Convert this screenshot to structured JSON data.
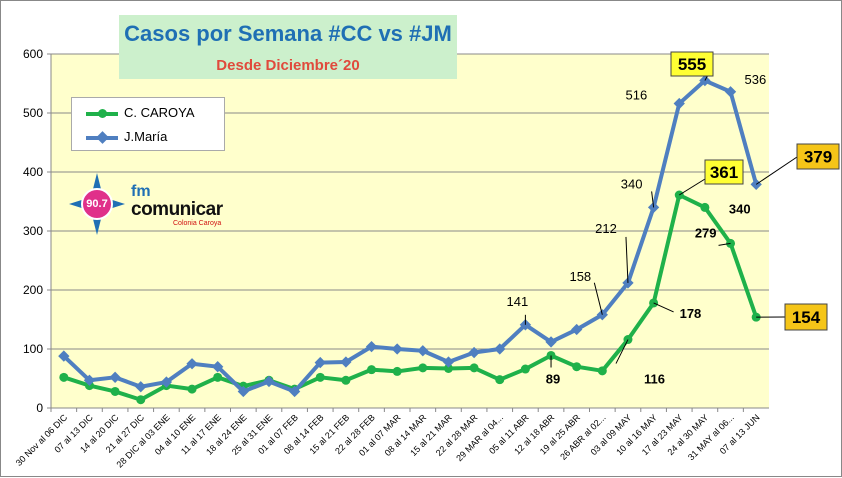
{
  "chart_data": {
    "type": "line",
    "title": "Casos por Semana #CC vs #JM",
    "subtitle": "Desde Diciembre´20",
    "ylim": [
      0,
      600
    ],
    "yticks": [
      0,
      100,
      200,
      300,
      400,
      500,
      600
    ],
    "grid": true,
    "legend_position": "top-left",
    "categories": [
      "30 Nov al 06 DIC",
      "07 al 13 DIC",
      "14 al 20 DIC",
      "21 al 27 DIC",
      "28 DIC al 03 ENE",
      "04 al 10 ENE",
      "11 al 17 ENE",
      "18 al 24 ENE",
      "25 al 31 ENE",
      "01 al 07 FEB",
      "08 al 14 FEB",
      "15 al 21 FEB",
      "22 al 28 FEB",
      "01 al 07 MAR",
      "08 al 14 MAR",
      "15 al 21 MAR",
      "22 al 28 MAR",
      "29 MAR al 04...",
      "05  al 11 ABR",
      "12  al 18 ABR",
      "19  al 25 ABR",
      "26 ABR al 02...",
      "03 al 09 MAY",
      "10 al 16 MAY",
      "17 al 23 MAY",
      "24 al 30 MAY",
      "31 MAY al 06...",
      "07 al 13 JUN"
    ],
    "series": [
      {
        "name": "C. CAROYA",
        "color": "#1fb14a",
        "values": [
          52,
          38,
          28,
          14,
          38,
          32,
          52,
          37,
          47,
          32,
          52,
          47,
          65,
          62,
          68,
          67,
          68,
          48,
          66,
          89,
          70,
          63,
          116,
          178,
          361,
          340,
          279,
          154
        ],
        "labels": [
          {
            "index": 19,
            "text": "89"
          },
          {
            "index": 22,
            "text": "116"
          },
          {
            "index": 23,
            "text": "178"
          },
          {
            "index": 24,
            "text": "361"
          },
          {
            "index": 25,
            "text": "340"
          },
          {
            "index": 26,
            "text": "279"
          },
          {
            "index": 27,
            "text": "154"
          }
        ]
      },
      {
        "name": "J.María",
        "color": "#4f7fc0",
        "values": [
          88,
          47,
          52,
          36,
          44,
          75,
          70,
          28,
          45,
          28,
          77,
          78,
          104,
          100,
          97,
          78,
          94,
          100,
          141,
          112,
          133,
          158,
          212,
          340,
          516,
          555,
          536,
          379
        ],
        "labels": [
          {
            "index": 18,
            "text": "141"
          },
          {
            "index": 21,
            "text": "158"
          },
          {
            "index": 22,
            "text": "212"
          },
          {
            "index": 23,
            "text": "340"
          },
          {
            "index": 24,
            "text": "516"
          },
          {
            "index": 25,
            "text": "555"
          },
          {
            "index": 26,
            "text": "536"
          },
          {
            "index": 27,
            "text": "379"
          }
        ]
      }
    ]
  },
  "logo": {
    "frequency": "90.7",
    "brand_prefix": "fm",
    "brand_name": "comunicar",
    "location": "Colonia Caroya"
  }
}
